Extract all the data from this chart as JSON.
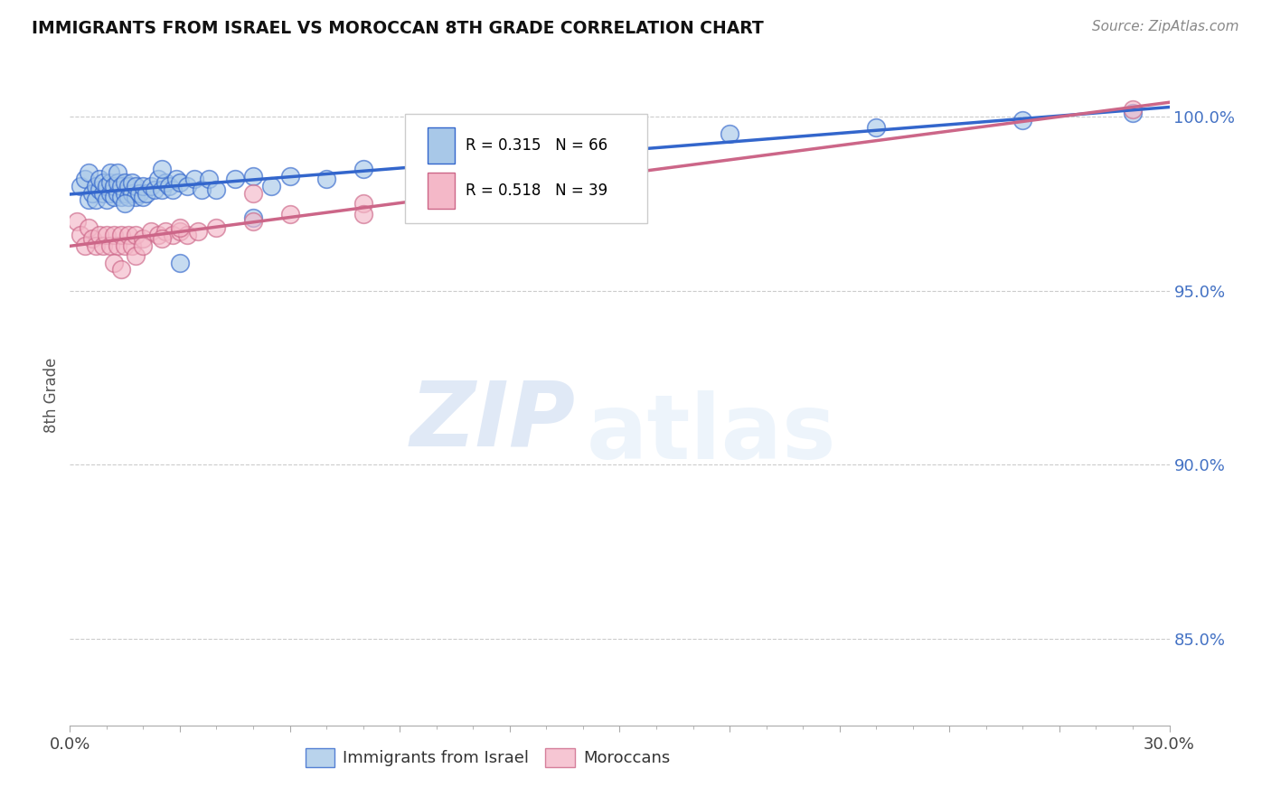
{
  "title": "IMMIGRANTS FROM ISRAEL VS MOROCCAN 8TH GRADE CORRELATION CHART",
  "source": "Source: ZipAtlas.com",
  "ylabel": "8th Grade",
  "yticks": [
    0.85,
    0.9,
    0.95,
    1.0
  ],
  "ytick_labels": [
    "85.0%",
    "90.0%",
    "95.0%",
    "100.0%"
  ],
  "ymin": 0.825,
  "ymax": 1.015,
  "xmin": 0.0,
  "xmax": 0.3,
  "xticks": [
    0.0,
    0.03,
    0.06,
    0.09,
    0.12,
    0.15,
    0.18,
    0.21,
    0.24,
    0.27,
    0.3
  ],
  "legend_r_blue": "R = 0.315",
  "legend_n_blue": "N = 66",
  "legend_r_pink": "R = 0.518",
  "legend_n_pink": "N = 39",
  "legend_label_blue": "Immigrants from Israel",
  "legend_label_pink": "Moroccans",
  "blue_color": "#a8c8e8",
  "pink_color": "#f4b8c8",
  "trendline_blue": "#3366cc",
  "trendline_pink": "#cc6688",
  "watermark_zip": "ZIP",
  "watermark_atlas": "atlas",
  "blue_x": [
    0.003,
    0.004,
    0.005,
    0.005,
    0.006,
    0.007,
    0.007,
    0.008,
    0.008,
    0.009,
    0.009,
    0.01,
    0.01,
    0.011,
    0.011,
    0.011,
    0.012,
    0.012,
    0.013,
    0.013,
    0.013,
    0.014,
    0.014,
    0.015,
    0.015,
    0.016,
    0.016,
    0.017,
    0.017,
    0.018,
    0.018,
    0.019,
    0.02,
    0.02,
    0.021,
    0.022,
    0.023,
    0.024,
    0.025,
    0.026,
    0.027,
    0.028,
    0.029,
    0.03,
    0.032,
    0.034,
    0.036,
    0.038,
    0.04,
    0.045,
    0.05,
    0.055,
    0.06,
    0.07,
    0.08,
    0.1,
    0.12,
    0.15,
    0.18,
    0.22,
    0.26,
    0.29,
    0.03,
    0.015,
    0.05,
    0.025
  ],
  "blue_y": [
    0.98,
    0.982,
    0.976,
    0.984,
    0.978,
    0.98,
    0.976,
    0.979,
    0.982,
    0.978,
    0.981,
    0.976,
    0.98,
    0.978,
    0.981,
    0.984,
    0.977,
    0.98,
    0.978,
    0.981,
    0.984,
    0.977,
    0.98,
    0.978,
    0.981,
    0.977,
    0.98,
    0.978,
    0.981,
    0.977,
    0.98,
    0.978,
    0.977,
    0.98,
    0.978,
    0.98,
    0.979,
    0.982,
    0.979,
    0.981,
    0.98,
    0.979,
    0.982,
    0.981,
    0.98,
    0.982,
    0.979,
    0.982,
    0.979,
    0.982,
    0.983,
    0.98,
    0.983,
    0.982,
    0.985,
    0.987,
    0.99,
    0.993,
    0.995,
    0.997,
    0.999,
    1.001,
    0.958,
    0.975,
    0.971,
    0.985
  ],
  "pink_x": [
    0.002,
    0.003,
    0.004,
    0.005,
    0.006,
    0.007,
    0.008,
    0.009,
    0.01,
    0.011,
    0.012,
    0.013,
    0.014,
    0.015,
    0.016,
    0.017,
    0.018,
    0.02,
    0.022,
    0.024,
    0.026,
    0.028,
    0.03,
    0.032,
    0.035,
    0.04,
    0.05,
    0.06,
    0.08,
    0.1,
    0.012,
    0.014,
    0.018,
    0.02,
    0.025,
    0.03,
    0.05,
    0.29,
    0.08
  ],
  "pink_y": [
    0.97,
    0.966,
    0.963,
    0.968,
    0.965,
    0.963,
    0.966,
    0.963,
    0.966,
    0.963,
    0.966,
    0.963,
    0.966,
    0.963,
    0.966,
    0.963,
    0.966,
    0.965,
    0.967,
    0.966,
    0.967,
    0.966,
    0.967,
    0.966,
    0.967,
    0.968,
    0.97,
    0.972,
    0.975,
    0.978,
    0.958,
    0.956,
    0.96,
    0.963,
    0.965,
    0.968,
    0.978,
    1.002,
    0.972
  ]
}
